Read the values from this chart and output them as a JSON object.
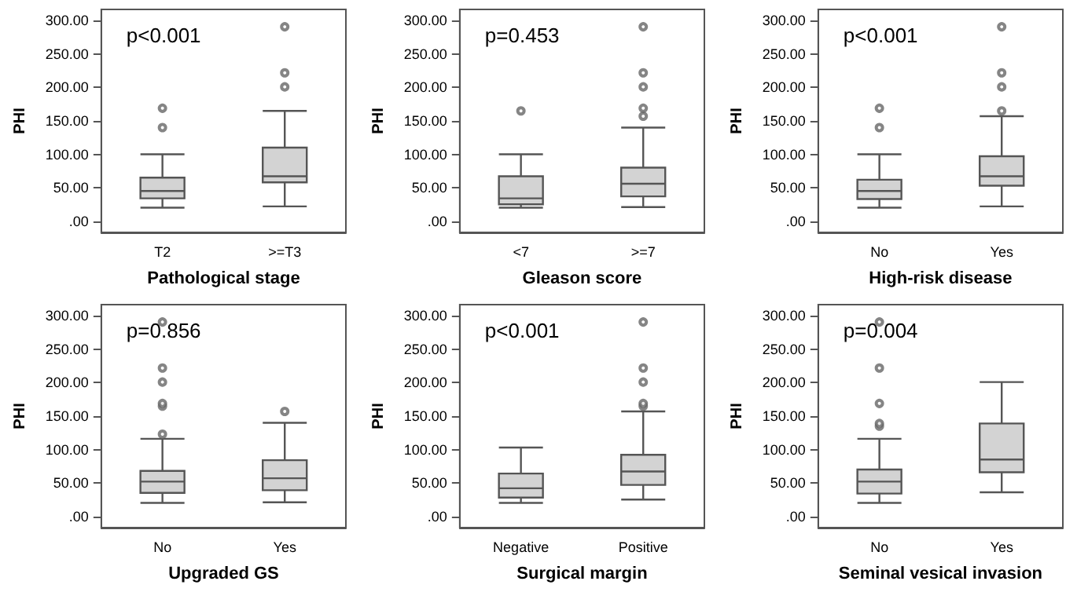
{
  "chart_data": [
    {
      "type": "box",
      "xlabel": "Pathological stage",
      "ylabel": "PHI",
      "annotations": [
        "p<0.001"
      ],
      "categories": [
        "T2",
        ">=T3"
      ],
      "ylim": [
        -17,
        317
      ],
      "yticks": [
        {
          "value": 0,
          "label": ".00"
        },
        {
          "value": 50,
          "label": "50.00"
        },
        {
          "value": 100,
          "label": "100.00"
        },
        {
          "value": 150,
          "label": "150.00"
        },
        {
          "value": 200,
          "label": "200.00"
        },
        {
          "value": 250,
          "label": "250.00"
        },
        {
          "value": 300,
          "label": "300.00"
        }
      ],
      "series": [
        {
          "color": "#d3d3d3",
          "boxes": [
            {
              "low": 20,
              "q1": 34,
              "median": 45,
              "q3": 65,
              "high": 100,
              "outliers": [
                140,
                169
              ]
            },
            {
              "low": 22,
              "q1": 58,
              "median": 67,
              "q3": 110,
              "high": 165,
              "outliers": [
                201,
                222,
                291
              ]
            }
          ]
        }
      ]
    },
    {
      "type": "box",
      "xlabel": "Gleason score",
      "ylabel": "PHI",
      "annotations": [
        "p=0.453"
      ],
      "categories": [
        "<7",
        ">=7"
      ],
      "ylim": [
        -17,
        317
      ],
      "yticks": [
        {
          "value": 0,
          "label": ".00"
        },
        {
          "value": 50,
          "label": "50.00"
        },
        {
          "value": 100,
          "label": "100.00"
        },
        {
          "value": 150,
          "label": "150.00"
        },
        {
          "value": 200,
          "label": "200.00"
        },
        {
          "value": 250,
          "label": "250.00"
        },
        {
          "value": 300,
          "label": "300.00"
        }
      ],
      "series": [
        {
          "color": "#d3d3d3",
          "boxes": [
            {
              "low": 20,
              "q1": 25,
              "median": 34,
              "q3": 67,
              "high": 100,
              "outliers": [
                165
              ]
            },
            {
              "low": 21,
              "q1": 37,
              "median": 56,
              "q3": 80,
              "high": 140,
              "outliers": [
                157,
                169,
                201,
                222,
                291
              ]
            }
          ]
        }
      ]
    },
    {
      "type": "box",
      "xlabel": "High-risk disease",
      "ylabel": "PHI",
      "annotations": [
        "p<0.001"
      ],
      "categories": [
        "No",
        "Yes"
      ],
      "ylim": [
        -17,
        317
      ],
      "yticks": [
        {
          "value": 0,
          "label": ".00"
        },
        {
          "value": 50,
          "label": "50.00"
        },
        {
          "value": 100,
          "label": "100.00"
        },
        {
          "value": 150,
          "label": "150.00"
        },
        {
          "value": 200,
          "label": "200.00"
        },
        {
          "value": 250,
          "label": "250.00"
        },
        {
          "value": 300,
          "label": "300.00"
        }
      ],
      "series": [
        {
          "color": "#d3d3d3",
          "boxes": [
            {
              "low": 20,
              "q1": 33,
              "median": 45,
              "q3": 62,
              "high": 100,
              "outliers": [
                140,
                169
              ]
            },
            {
              "low": 22,
              "q1": 53,
              "median": 67,
              "q3": 97,
              "high": 157,
              "outliers": [
                165,
                201,
                222,
                291
              ]
            }
          ]
        }
      ]
    },
    {
      "type": "box",
      "xlabel": "Upgraded GS",
      "ylabel": "PHI",
      "annotations": [
        "p=0.856"
      ],
      "categories": [
        "No",
        "Yes"
      ],
      "ylim": [
        -17,
        317
      ],
      "yticks": [
        {
          "value": 0,
          "label": ".00"
        },
        {
          "value": 50,
          "label": "50.00"
        },
        {
          "value": 100,
          "label": "100.00"
        },
        {
          "value": 150,
          "label": "150.00"
        },
        {
          "value": 200,
          "label": "200.00"
        },
        {
          "value": 250,
          "label": "250.00"
        },
        {
          "value": 300,
          "label": "300.00"
        }
      ],
      "series": [
        {
          "color": "#d3d3d3",
          "boxes": [
            {
              "low": 20,
              "q1": 35,
              "median": 52,
              "q3": 68,
              "high": 116,
              "outliers": [
                123,
                165,
                169,
                201,
                222,
                291
              ]
            },
            {
              "low": 21,
              "q1": 39,
              "median": 57,
              "q3": 84,
              "high": 140,
              "outliers": [
                157
              ]
            }
          ]
        }
      ]
    },
    {
      "type": "box",
      "xlabel": "Surgical margin",
      "ylabel": "PHI",
      "annotations": [
        "p<0.001"
      ],
      "categories": [
        "Negative",
        "Positive"
      ],
      "ylim": [
        -17,
        317
      ],
      "yticks": [
        {
          "value": 0,
          "label": ".00"
        },
        {
          "value": 50,
          "label": "50.00"
        },
        {
          "value": 100,
          "label": "100.00"
        },
        {
          "value": 150,
          "label": "150.00"
        },
        {
          "value": 200,
          "label": "200.00"
        },
        {
          "value": 250,
          "label": "250.00"
        },
        {
          "value": 300,
          "label": "300.00"
        }
      ],
      "series": [
        {
          "color": "#d3d3d3",
          "boxes": [
            {
              "low": 20,
              "q1": 28,
              "median": 42,
              "q3": 64,
              "high": 103
            },
            {
              "low": 25,
              "q1": 47,
              "median": 67,
              "q3": 92,
              "high": 157,
              "outliers": [
                165,
                169,
                201,
                222,
                291
              ]
            }
          ]
        }
      ]
    },
    {
      "type": "box",
      "xlabel": "Seminal vesical invasion",
      "ylabel": "PHI",
      "annotations": [
        "p=0.004"
      ],
      "categories": [
        "No",
        "Yes"
      ],
      "ylim": [
        -17,
        317
      ],
      "yticks": [
        {
          "value": 0,
          "label": ".00"
        },
        {
          "value": 50,
          "label": "50.00"
        },
        {
          "value": 100,
          "label": "100.00"
        },
        {
          "value": 150,
          "label": "150.00"
        },
        {
          "value": 200,
          "label": "200.00"
        },
        {
          "value": 250,
          "label": "250.00"
        },
        {
          "value": 300,
          "label": "300.00"
        }
      ],
      "series": [
        {
          "color": "#d3d3d3",
          "boxes": [
            {
              "low": 20,
              "q1": 34,
              "median": 52,
              "q3": 70,
              "high": 116,
              "outliers": [
                135,
                139,
                169,
                222,
                291
              ]
            },
            {
              "low": 36,
              "q1": 66,
              "median": 85,
              "q3": 139,
              "high": 201
            }
          ]
        }
      ]
    }
  ]
}
